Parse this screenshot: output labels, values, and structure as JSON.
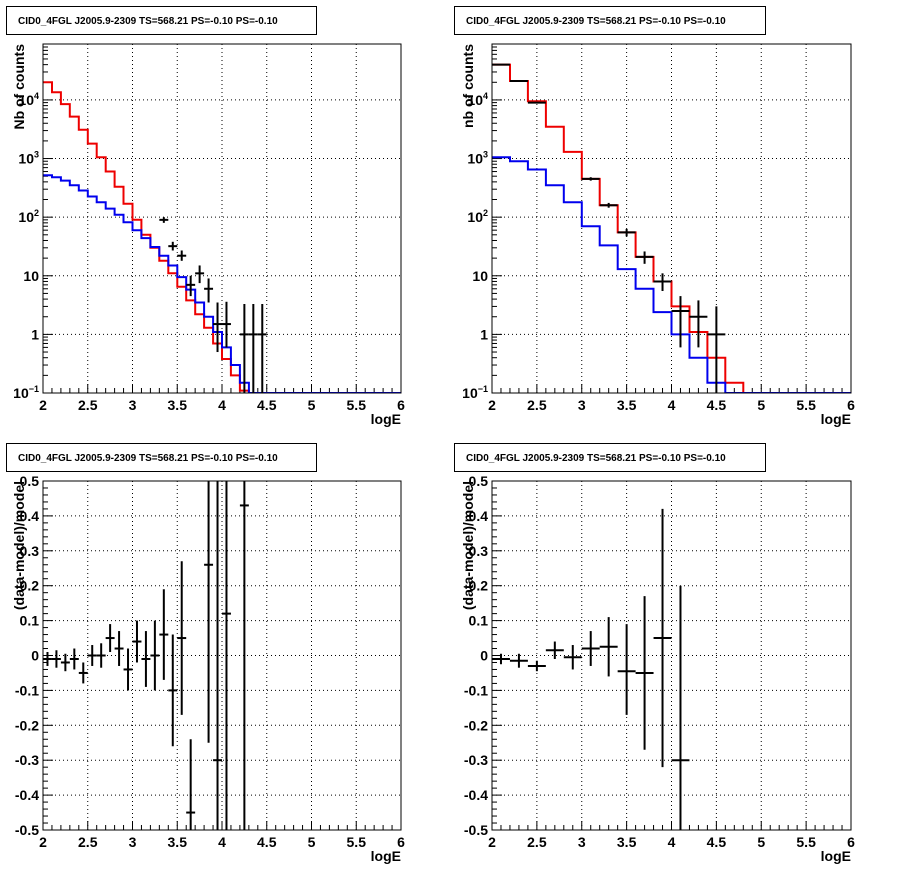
{
  "colors": {
    "data": "#000000",
    "model_total": "#ee0000",
    "model_component": "#0000ee",
    "grid": "#000000"
  },
  "chart_data": [
    {
      "type": "step-histogram",
      "title": "CID0_4FGL J2005.9-2309 TS=568.21 PS=-0.10 PS=-0.10",
      "xlabel": "logE",
      "ylabel": "Nb of counts",
      "xlim": [
        2,
        6
      ],
      "ylim": [
        0.1,
        90000
      ],
      "log_y": true,
      "grid": true,
      "x_ticks": [
        "2",
        "2.5",
        "3",
        "3.5",
        "4",
        "4.5",
        "5",
        "5.5",
        "6"
      ],
      "y_ticks": [
        {
          "value": 0.1,
          "base": "10",
          "exp": "−1"
        },
        {
          "value": 1,
          "label": "1"
        },
        {
          "value": 10,
          "label": "10"
        },
        {
          "value": 100,
          "base": "10",
          "exp": "2"
        },
        {
          "value": 1000,
          "base": "10",
          "exp": "3"
        },
        {
          "value": 10000,
          "base": "10",
          "exp": "4"
        }
      ],
      "bin_width": 0.1,
      "series": [
        {
          "role": "model_total",
          "x_start": 2.0,
          "values": [
            20000,
            13500,
            8500,
            5200,
            3100,
            1800,
            1050,
            600,
            330,
            170,
            90,
            50,
            30,
            18,
            11,
            6.5,
            3.8,
            2.2,
            1.3,
            0.7,
            0.38,
            0.2,
            0.11,
            0.1,
            0.1,
            0.1,
            0.1,
            0.1,
            0.1,
            0.1,
            0.1,
            0.1,
            0.1,
            0.1,
            0.1,
            0.1,
            0.1,
            0.1,
            0.1,
            0.1
          ]
        },
        {
          "role": "model_component",
          "x_start": 2.0,
          "values": [
            520,
            480,
            420,
            350,
            285,
            225,
            180,
            140,
            110,
            82,
            60,
            44,
            31,
            22,
            15,
            9.5,
            5.8,
            3.5,
            2.0,
            1.1,
            0.6,
            0.3,
            0.15,
            0.1,
            0.1,
            0.1,
            0.1,
            0.1,
            0.1,
            0.1,
            0.1,
            0.1,
            0.1,
            0.1,
            0.1,
            0.1,
            0.1,
            0.1,
            0.1,
            0.1
          ]
        },
        {
          "role": "data",
          "x_halfwidth": 0.05,
          "points": [
            {
              "x": 3.35,
              "y": 90,
              "lo": 80,
              "hi": 100
            },
            {
              "x": 3.45,
              "y": 32,
              "lo": 27,
              "hi": 38
            },
            {
              "x": 3.55,
              "y": 22,
              "lo": 18,
              "hi": 27
            },
            {
              "x": 3.65,
              "y": 7,
              "lo": 4.5,
              "hi": 10
            },
            {
              "x": 3.75,
              "y": 11,
              "lo": 7.5,
              "hi": 15
            },
            {
              "x": 3.85,
              "y": 6,
              "lo": 3.5,
              "hi": 9
            },
            {
              "x": 3.95,
              "y": 1.5,
              "lo": 0.5,
              "hi": 3.5
            },
            {
              "x": 4.05,
              "y": 1.5,
              "lo": 0.6,
              "hi": 3.6
            },
            {
              "x": 4.25,
              "y": 1,
              "lo": 0.1,
              "hi": 3.3
            },
            {
              "x": 4.35,
              "y": 1,
              "lo": 0.1,
              "hi": 3.3
            },
            {
              "x": 4.45,
              "y": 1,
              "lo": 0.1,
              "hi": 3.3
            }
          ]
        }
      ]
    },
    {
      "type": "step-histogram",
      "title": "CID0_4FGL J2005.9-2309 TS=568.21 PS=-0.10 PS=-0.10",
      "xlabel": "logE",
      "ylabel": "nb of counts",
      "xlim": [
        2,
        6
      ],
      "ylim": [
        0.1,
        90000
      ],
      "log_y": true,
      "grid": true,
      "x_ticks": [
        "2",
        "2.5",
        "3",
        "3.5",
        "4",
        "4.5",
        "5",
        "5.5",
        "6"
      ],
      "y_ticks": [
        {
          "value": 0.1,
          "base": "10",
          "exp": "−1"
        },
        {
          "value": 1,
          "label": "1"
        },
        {
          "value": 10,
          "label": "10"
        },
        {
          "value": 100,
          "base": "10",
          "exp": "2"
        },
        {
          "value": 1000,
          "base": "10",
          "exp": "3"
        },
        {
          "value": 10000,
          "base": "10",
          "exp": "4"
        }
      ],
      "bin_width": 0.2,
      "series": [
        {
          "role": "model_total",
          "x_start": 2.0,
          "values": [
            40000,
            21000,
            9500,
            3500,
            1300,
            450,
            160,
            55,
            21,
            8,
            3,
            1.1,
            0.4,
            0.15,
            0.1,
            0.1,
            0.1,
            0.1,
            0.1,
            0.1
          ]
        },
        {
          "role": "model_component",
          "x_start": 2.0,
          "values": [
            1050,
            900,
            650,
            350,
            180,
            70,
            33,
            13,
            6,
            2.4,
            1.0,
            0.4,
            0.15,
            0.1,
            0.1,
            0.1,
            0.1,
            0.1,
            0.1,
            0.1
          ]
        },
        {
          "role": "data",
          "x_halfwidth": 0.1,
          "points": [
            {
              "x": 2.1,
              "y": 40000,
              "lo": 39500,
              "hi": 40500
            },
            {
              "x": 2.3,
              "y": 21000,
              "lo": 20700,
              "hi": 21300
            },
            {
              "x": 2.5,
              "y": 9000,
              "lo": 8800,
              "hi": 9200
            },
            {
              "x": 3.1,
              "y": 450,
              "lo": 420,
              "hi": 480
            },
            {
              "x": 3.3,
              "y": 160,
              "lo": 145,
              "hi": 175
            },
            {
              "x": 3.5,
              "y": 55,
              "lo": 47,
              "hi": 63
            },
            {
              "x": 3.7,
              "y": 21,
              "lo": 16,
              "hi": 26
            },
            {
              "x": 3.9,
              "y": 8,
              "lo": 5.5,
              "hi": 11
            },
            {
              "x": 4.1,
              "y": 2.5,
              "lo": 0.6,
              "hi": 4.5
            },
            {
              "x": 4.3,
              "y": 2,
              "lo": 0.6,
              "hi": 3.8
            },
            {
              "x": 4.5,
              "y": 1,
              "lo": 0.1,
              "hi": 3
            }
          ]
        }
      ]
    },
    {
      "type": "scatter-errorbars",
      "title": "CID0_4FGL J2005.9-2309 TS=568.21 PS=-0.10 PS=-0.10",
      "xlabel": "logE",
      "ylabel": "(data-model)/model",
      "xlim": [
        2,
        6
      ],
      "ylim": [
        -0.5,
        0.5
      ],
      "grid": true,
      "x_ticks": [
        "2",
        "2.5",
        "3",
        "3.5",
        "4",
        "4.5",
        "5",
        "5.5",
        "6"
      ],
      "y_ticks": [
        "-0.5",
        "-0.4",
        "-0.3",
        "-0.2",
        "-0.1",
        "0",
        "0.1",
        "0.2",
        "0.3",
        "0.4",
        "0.5"
      ],
      "x_halfwidth": 0.05,
      "points": [
        {
          "x": 2.05,
          "y": -0.01,
          "lo": -0.03,
          "hi": 0.01
        },
        {
          "x": 2.15,
          "y": -0.01,
          "lo": -0.035,
          "hi": 0.015
        },
        {
          "x": 2.25,
          "y": -0.02,
          "lo": -0.045,
          "hi": 0.005
        },
        {
          "x": 2.35,
          "y": -0.01,
          "lo": -0.04,
          "hi": 0.02
        },
        {
          "x": 2.45,
          "y": -0.05,
          "lo": -0.08,
          "hi": -0.02
        },
        {
          "x": 2.55,
          "y": 0.0,
          "lo": -0.03,
          "hi": 0.03
        },
        {
          "x": 2.65,
          "y": 0.0,
          "lo": -0.035,
          "hi": 0.035
        },
        {
          "x": 2.75,
          "y": 0.05,
          "lo": 0.01,
          "hi": 0.09
        },
        {
          "x": 2.85,
          "y": 0.02,
          "lo": -0.03,
          "hi": 0.07
        },
        {
          "x": 2.95,
          "y": -0.04,
          "lo": -0.1,
          "hi": 0.02
        },
        {
          "x": 3.05,
          "y": 0.04,
          "lo": -0.02,
          "hi": 0.1
        },
        {
          "x": 3.15,
          "y": -0.01,
          "lo": -0.09,
          "hi": 0.07
        },
        {
          "x": 3.25,
          "y": 0.0,
          "lo": -0.1,
          "hi": 0.1
        },
        {
          "x": 3.35,
          "y": 0.06,
          "lo": -0.07,
          "hi": 0.19
        },
        {
          "x": 3.45,
          "y": -0.1,
          "lo": -0.26,
          "hi": 0.06
        },
        {
          "x": 3.55,
          "y": 0.05,
          "lo": -0.17,
          "hi": 0.27
        },
        {
          "x": 3.65,
          "y": -0.45,
          "lo": -0.5,
          "hi": -0.24
        },
        {
          "x": 3.85,
          "y": 0.26,
          "lo": -0.25,
          "hi": 0.5
        },
        {
          "x": 3.95,
          "y": -0.3,
          "lo": -0.5,
          "hi": 0.5
        },
        {
          "x": 4.05,
          "y": 0.12,
          "lo": -0.5,
          "hi": 0.5
        },
        {
          "x": 4.25,
          "y": 0.43,
          "lo": -0.5,
          "hi": 0.5
        }
      ]
    },
    {
      "type": "scatter-errorbars",
      "title": "CID0_4FGL J2005.9-2309 TS=568.21 PS=-0.10 PS=-0.10",
      "xlabel": "logE",
      "ylabel": "(data-model)/model",
      "xlim": [
        2,
        6
      ],
      "ylim": [
        -0.5,
        0.5
      ],
      "grid": true,
      "x_ticks": [
        "2",
        "2.5",
        "3",
        "3.5",
        "4",
        "4.5",
        "5",
        "5.5",
        "6"
      ],
      "y_ticks": [
        "-0.5",
        "-0.4",
        "-0.3",
        "-0.2",
        "-0.1",
        "0",
        "0.1",
        "0.2",
        "0.3",
        "0.4",
        "0.5"
      ],
      "x_halfwidth": 0.1,
      "points": [
        {
          "x": 2.1,
          "y": -0.01,
          "lo": -0.025,
          "hi": 0.005
        },
        {
          "x": 2.3,
          "y": -0.015,
          "lo": -0.035,
          "hi": 0.005
        },
        {
          "x": 2.5,
          "y": -0.03,
          "lo": -0.045,
          "hi": -0.015
        },
        {
          "x": 2.7,
          "y": 0.015,
          "lo": -0.01,
          "hi": 0.04
        },
        {
          "x": 2.9,
          "y": -0.005,
          "lo": -0.04,
          "hi": 0.03
        },
        {
          "x": 3.1,
          "y": 0.02,
          "lo": -0.03,
          "hi": 0.07
        },
        {
          "x": 3.3,
          "y": 0.025,
          "lo": -0.06,
          "hi": 0.11
        },
        {
          "x": 3.5,
          "y": -0.045,
          "lo": -0.17,
          "hi": 0.09
        },
        {
          "x": 3.7,
          "y": -0.05,
          "lo": -0.27,
          "hi": 0.17
        },
        {
          "x": 3.9,
          "y": 0.05,
          "lo": -0.32,
          "hi": 0.42
        },
        {
          "x": 4.1,
          "y": -0.3,
          "lo": -0.5,
          "hi": 0.2
        }
      ]
    }
  ]
}
